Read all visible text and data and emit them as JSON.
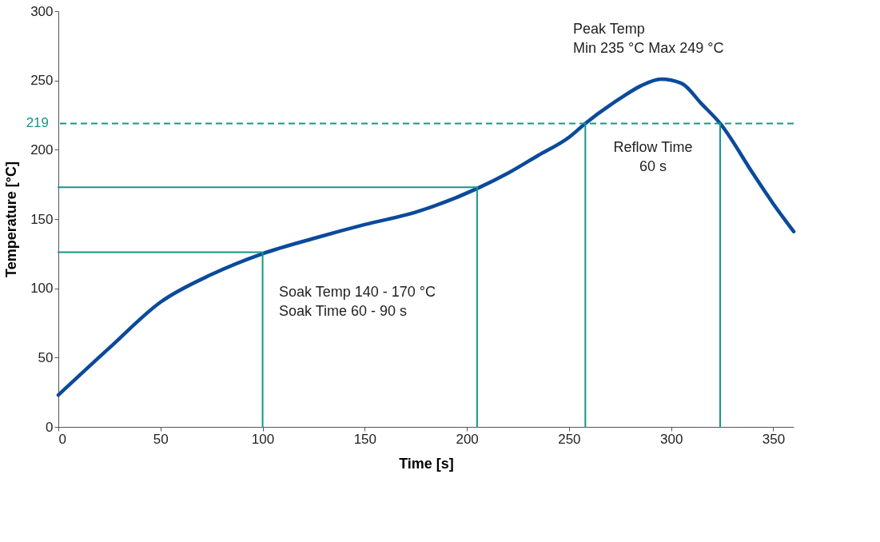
{
  "chart_data": {
    "type": "line",
    "xlabel": "Time [s]",
    "ylabel": "Temperature [°C]",
    "xlim": [
      0,
      360
    ],
    "xticks": [
      0,
      50,
      100,
      150,
      200,
      250,
      300,
      350
    ],
    "ylim": [
      0,
      300
    ],
    "yticks": [
      0,
      50,
      100,
      150,
      200,
      250,
      300
    ],
    "grid": false,
    "marker": "none",
    "line_style": "solid",
    "series": [
      {
        "color": "#0b4a9b",
        "x": [
          0,
          25,
          50,
          75,
          100,
          125,
          150,
          175,
          205,
          220,
          235,
          250,
          258,
          275,
          285,
          295,
          305,
          315,
          324,
          340,
          350,
          360
        ],
        "values": [
          23,
          57,
          90,
          110,
          125,
          136,
          146,
          155,
          172,
          183,
          196,
          209,
          219,
          237,
          246,
          251,
          248,
          233,
          219,
          183,
          161,
          141
        ]
      },
      {
        "color": "#17968a",
        "x": [
          0,
          100,
          100
        ],
        "values": [
          126,
          126,
          0
        ]
      },
      {
        "color": "#17968a",
        "x": [
          0,
          205,
          205
        ],
        "values": [
          173,
          173,
          0
        ]
      },
      {
        "color": "#17968a",
        "x": [
          258,
          258
        ],
        "values": [
          0,
          219
        ]
      },
      {
        "color": "#17968a",
        "x": [
          324,
          324
        ],
        "values": [
          0,
          219
        ]
      }
    ],
    "ref_lines": [
      {
        "axis": "y",
        "value": 219,
        "label": "219",
        "color": "#17968a",
        "line_style": "dashed"
      }
    ],
    "annotations": [
      "Peak Temp\nMin 235 °C Max 249 °C",
      "Soak Temp 140 - 170 °C\nSoak Time 60 - 90 s",
      "Reflow Time\n60 s"
    ]
  }
}
